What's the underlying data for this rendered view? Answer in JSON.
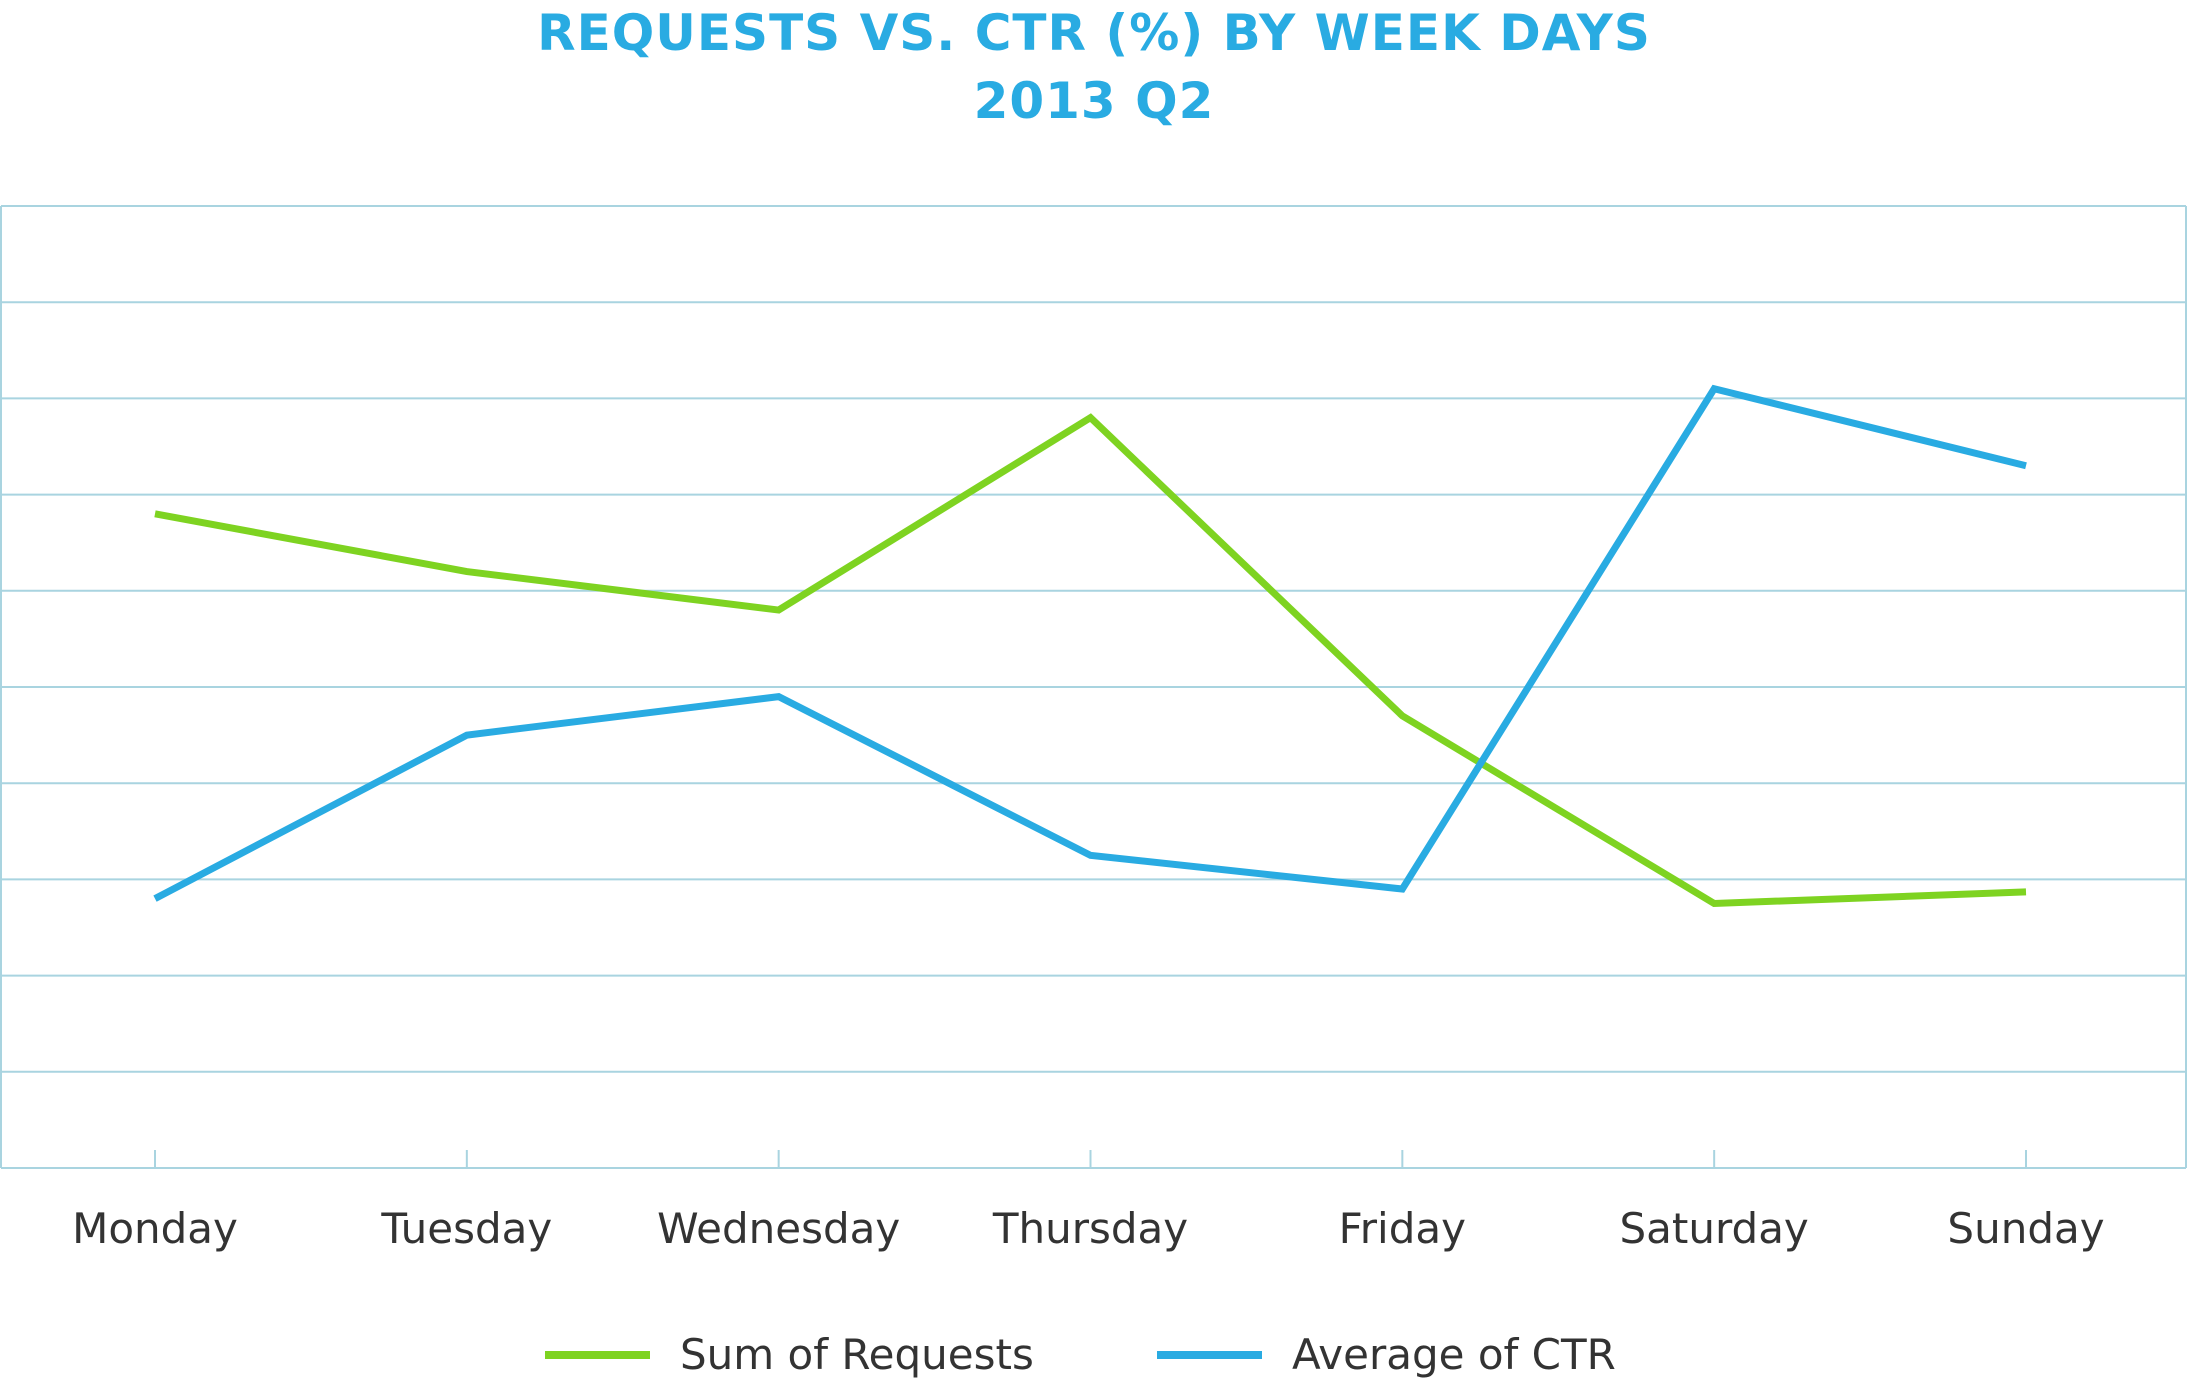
{
  "chart_data": {
    "type": "line",
    "title": "REQUESTS VS. CTR (%) BY WEEK DAYS",
    "subtitle": "2013 Q2",
    "xlabel": "",
    "ylabel": "",
    "categories": [
      "Monday",
      "Tuesday",
      "Wednesday",
      "Thursday",
      "Friday",
      "Saturday",
      "Sunday"
    ],
    "ylim": [
      0,
      10
    ],
    "grid": true,
    "gridlines": 10,
    "legend_position": "bottom-center",
    "series": [
      {
        "name": "Sum of Requests",
        "color": "#7ed321",
        "values": [
          6.8,
          6.2,
          5.8,
          7.8,
          4.7,
          2.75,
          2.87
        ]
      },
      {
        "name": "Average of CTR",
        "color": "#29abe2",
        "values": [
          2.8,
          4.5,
          4.9,
          3.25,
          2.9,
          8.1,
          7.3
        ]
      }
    ]
  },
  "colors": {
    "title": "#29abe2",
    "grid": "#a9d4e0",
    "axis_text": "#333333"
  }
}
